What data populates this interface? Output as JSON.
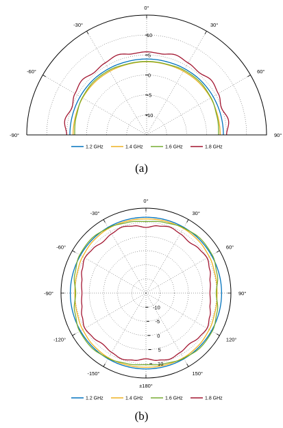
{
  "captions": {
    "a": "(a)",
    "b": "(b)"
  },
  "chart_data": [
    {
      "type": "polar-line",
      "panel": "(a)",
      "angle_range_deg": [
        -90,
        90
      ],
      "angle_ticks": [
        {
          "deg": -90,
          "label": "-90°"
        },
        {
          "deg": -60,
          "label": "-60°"
        },
        {
          "deg": -30,
          "label": "-30°"
        },
        {
          "deg": 0,
          "label": "0°"
        },
        {
          "deg": 30,
          "label": "30°"
        },
        {
          "deg": 60,
          "label": "60°"
        },
        {
          "deg": 90,
          "label": "90°"
        }
      ],
      "r_range": [
        -15,
        15
      ],
      "r_ticks": [
        {
          "value": -10,
          "label": "-10"
        },
        {
          "value": -5,
          "label": "-5"
        },
        {
          "value": 0,
          "label": "0"
        },
        {
          "value": 5,
          "label": "5"
        },
        {
          "value": 10,
          "label": "10"
        }
      ],
      "grid": true,
      "legend_placement": "bottom",
      "series": [
        {
          "name": "1.2 GHz",
          "color": "#0072BD",
          "angles": [
            -90,
            -75,
            -60,
            -45,
            -30,
            -15,
            0,
            15,
            30,
            45,
            60,
            75,
            90
          ],
          "values": [
            4.2,
            4.2,
            4.2,
            4.2,
            4.1,
            4.0,
            4.0,
            4.0,
            4.1,
            4.2,
            4.2,
            4.2,
            4.2
          ]
        },
        {
          "name": "1.4 GHz",
          "color": "#EDB120",
          "angles": [
            -90,
            -75,
            -60,
            -45,
            -30,
            -15,
            0,
            15,
            30,
            45,
            60,
            75,
            90
          ],
          "values": [
            3.4,
            3.4,
            3.5,
            3.5,
            3.4,
            3.3,
            3.3,
            3.3,
            3.4,
            3.5,
            3.5,
            3.4,
            3.4
          ]
        },
        {
          "name": "1.6 GHz",
          "color": "#77AC30",
          "angles": [
            -90,
            -75,
            -60,
            -45,
            -30,
            -15,
            0,
            15,
            30,
            45,
            60,
            75,
            90
          ],
          "values": [
            3.0,
            3.2,
            3.6,
            3.8,
            3.7,
            3.4,
            3.4,
            3.4,
            3.7,
            3.8,
            3.6,
            3.2,
            3.0
          ]
        },
        {
          "name": "1.8 GHz",
          "color": "#A2142F",
          "angles": [
            -90,
            -80,
            -70,
            -60,
            -50,
            -40,
            -30,
            -20,
            -10,
            0,
            10,
            20,
            30,
            40,
            50,
            60,
            70,
            80,
            90
          ],
          "values": [
            5.0,
            5.8,
            4.9,
            5.7,
            6.2,
            5.4,
            5.8,
            6.3,
            5.6,
            5.8,
            5.6,
            6.3,
            5.8,
            5.4,
            6.2,
            5.7,
            4.9,
            5.8,
            5.0
          ]
        }
      ]
    },
    {
      "type": "polar-line",
      "panel": "(b)",
      "angle_range_deg": [
        -180,
        180
      ],
      "angle_ticks": [
        {
          "deg": 0,
          "label": "0°"
        },
        {
          "deg": 30,
          "label": "30°"
        },
        {
          "deg": 60,
          "label": "60°"
        },
        {
          "deg": 90,
          "label": "90°"
        },
        {
          "deg": 120,
          "label": "120°"
        },
        {
          "deg": 150,
          "label": "150°"
        },
        {
          "deg": 180,
          "label": "±180°"
        },
        {
          "deg": -150,
          "label": "-150°"
        },
        {
          "deg": -120,
          "label": "-120°"
        },
        {
          "deg": -90,
          "label": "-90°"
        },
        {
          "deg": -60,
          "label": "-60°"
        },
        {
          "deg": -30,
          "label": "-30°"
        }
      ],
      "r_range": [
        -15,
        15
      ],
      "r_ticks": [
        {
          "value": -10,
          "label": "-10"
        },
        {
          "value": -5,
          "label": "-5"
        },
        {
          "value": 0,
          "label": "0"
        },
        {
          "value": 5,
          "label": "5"
        },
        {
          "value": 10,
          "label": "10"
        }
      ],
      "grid": true,
      "legend_placement": "bottom",
      "series": [
        {
          "name": "1.2 GHz",
          "color": "#0072BD",
          "angles": [
            0,
            30,
            60,
            90,
            120,
            150,
            180,
            210,
            240,
            270,
            300,
            330
          ],
          "values": [
            11.8,
            11.8,
            11.7,
            11.7,
            11.7,
            11.8,
            11.8,
            11.8,
            11.7,
            11.7,
            11.7,
            11.8
          ]
        },
        {
          "name": "1.4 GHz",
          "color": "#EDB120",
          "angles": [
            0,
            15,
            30,
            45,
            60,
            75,
            90,
            105,
            120,
            135,
            150,
            165,
            180,
            195,
            210,
            225,
            240,
            255,
            270,
            285,
            300,
            315,
            330,
            345
          ],
          "values": [
            11.2,
            11.3,
            11.4,
            11.2,
            10.8,
            10.3,
            10.1,
            10.3,
            10.8,
            11.2,
            11.4,
            11.3,
            11.2,
            11.3,
            11.4,
            11.2,
            10.8,
            10.3,
            10.1,
            10.3,
            10.8,
            11.2,
            11.4,
            11.3
          ]
        },
        {
          "name": "1.6 GHz",
          "color": "#77AC30",
          "angles": [
            0,
            15,
            30,
            45,
            60,
            75,
            90,
            105,
            120,
            135,
            150,
            165,
            180,
            195,
            210,
            225,
            240,
            255,
            270,
            285,
            300,
            315,
            330,
            345
          ],
          "values": [
            10.3,
            10.8,
            11.6,
            12.2,
            12.0,
            11.0,
            9.8,
            11.0,
            12.0,
            12.2,
            11.6,
            10.8,
            10.3,
            10.8,
            11.6,
            12.2,
            12.0,
            11.0,
            9.8,
            11.0,
            12.0,
            12.2,
            11.6,
            10.8
          ]
        },
        {
          "name": "1.8 GHz",
          "color": "#A2142F",
          "angles": [
            0,
            10,
            20,
            30,
            40,
            50,
            60,
            70,
            80,
            90,
            100,
            110,
            120,
            130,
            140,
            150,
            160,
            170,
            180,
            190,
            200,
            210,
            220,
            230,
            240,
            250,
            260,
            270,
            280,
            290,
            300,
            310,
            320,
            330,
            340,
            350
          ],
          "values": [
            8.2,
            9.1,
            9.8,
            9.2,
            8.6,
            9.4,
            9.9,
            9.0,
            8.0,
            7.6,
            8.0,
            9.0,
            9.9,
            9.4,
            8.6,
            9.2,
            9.8,
            9.1,
            8.2,
            9.1,
            9.8,
            9.2,
            8.6,
            9.4,
            9.9,
            9.0,
            8.0,
            7.6,
            8.0,
            9.0,
            9.9,
            9.4,
            8.6,
            9.2,
            9.8,
            9.1
          ]
        }
      ]
    }
  ]
}
